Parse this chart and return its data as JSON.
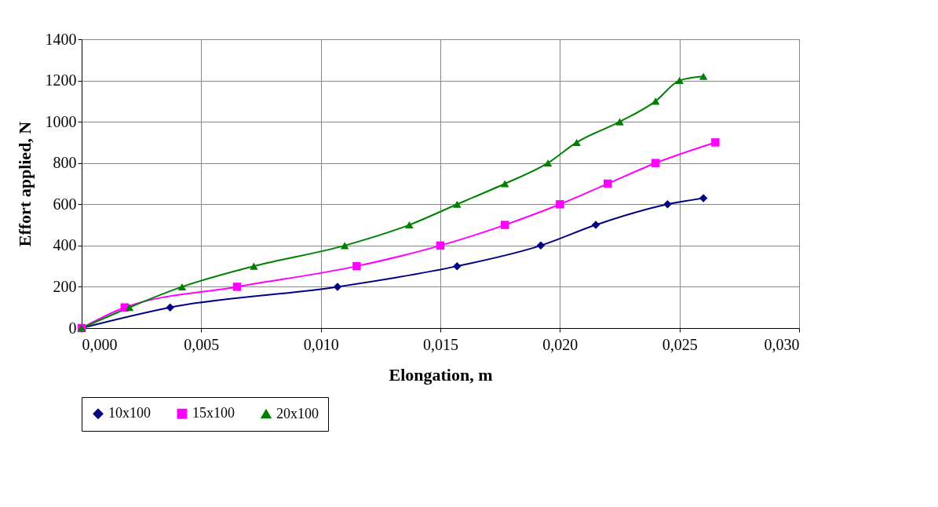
{
  "chart_data": {
    "type": "line",
    "xlabel": "Elongation, m",
    "ylabel": "Effort applied, N",
    "xlim": [
      0,
      0.03
    ],
    "xticks": [
      {
        "value": 0,
        "label": "0,000"
      },
      {
        "value": 0.005,
        "label": "0,005"
      },
      {
        "value": 0.01,
        "label": "0,010"
      },
      {
        "value": 0.015,
        "label": "0,015"
      },
      {
        "value": 0.02,
        "label": "0,020"
      },
      {
        "value": 0.025,
        "label": "0,025"
      },
      {
        "value": 0.03,
        "label": "0,030"
      }
    ],
    "ylim": [
      0,
      1400
    ],
    "yticks": [
      0,
      200,
      400,
      600,
      800,
      1000,
      1200,
      1400
    ],
    "grid": true,
    "legend": "bottom",
    "line_style": "solid",
    "series": [
      {
        "name": "10x100",
        "color": "#000080",
        "marker": "diamond",
        "x": [
          0,
          0.0037,
          0.0107,
          0.0157,
          0.0192,
          0.0215,
          0.0245,
          0.026
        ],
        "values": [
          0,
          100,
          200,
          300,
          400,
          500,
          600,
          630
        ]
      },
      {
        "name": "15x100",
        "color": "#ff00ff",
        "marker": "square",
        "x": [
          0,
          0.0018,
          0.0065,
          0.0115,
          0.015,
          0.0177,
          0.02,
          0.022,
          0.024,
          0.0265
        ],
        "values": [
          0,
          100,
          200,
          300,
          400,
          500,
          600,
          700,
          800,
          900
        ]
      },
      {
        "name": "20x100",
        "color": "#008000",
        "marker": "triangle",
        "x": [
          0,
          0.002,
          0.0042,
          0.0072,
          0.011,
          0.0137,
          0.0157,
          0.0177,
          0.0195,
          0.0207,
          0.0225,
          0.024,
          0.025,
          0.026
        ],
        "values": [
          0,
          100,
          200,
          300,
          400,
          500,
          600,
          700,
          800,
          900,
          1000,
          1100,
          1200,
          1220
        ]
      }
    ]
  }
}
